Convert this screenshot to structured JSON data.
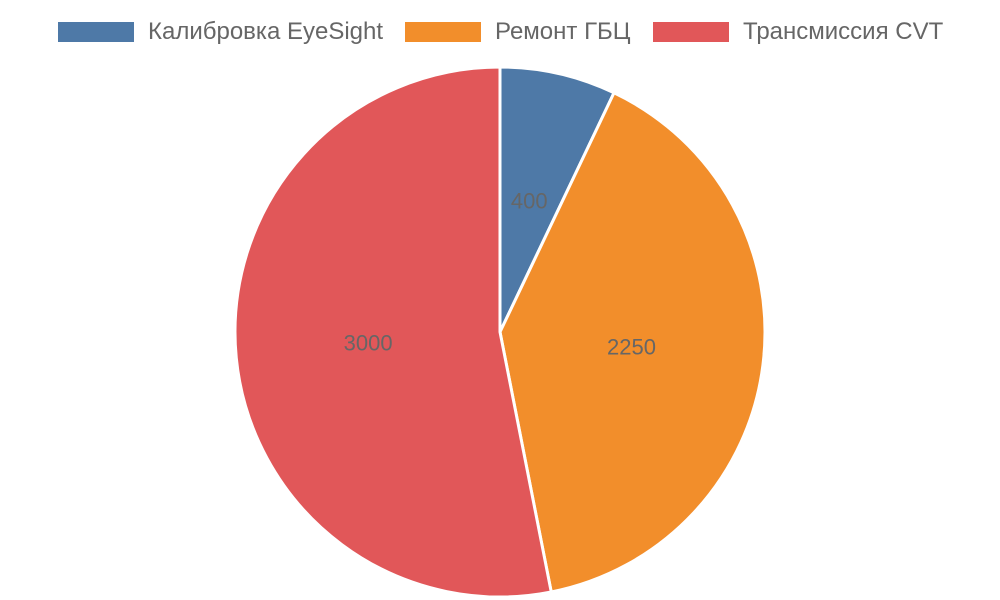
{
  "chart_data": {
    "type": "pie",
    "categories": [
      "Калибровка EyeSight",
      "Ремонт ГБЦ",
      "Трансмиссия CVT"
    ],
    "values": [
      400,
      2250,
      3000
    ],
    "colors": [
      "#4e79a7",
      "#f28e2b",
      "#e15759"
    ],
    "data_labels": [
      "400",
      "2250",
      "3000"
    ],
    "start_angle_deg": 0,
    "direction": "clockwise",
    "legend_position": "top",
    "title": ""
  }
}
